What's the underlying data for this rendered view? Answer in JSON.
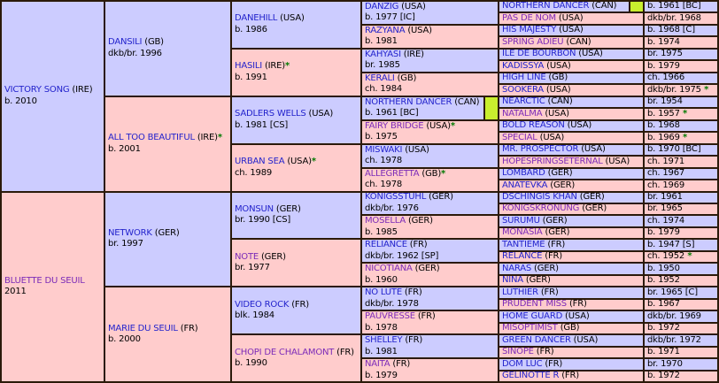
{
  "palette": {
    "sire_bg": "#ccccff",
    "dam_bg": "#ffcccc",
    "border": "#2b1a0a",
    "link": "#2323cc",
    "visited": "#7c2bb8",
    "star": "#007a00",
    "marker": "#c9ee2e",
    "text": "#000000"
  },
  "pedigree": {
    "generations": [
      {
        "column": 1,
        "span": 16,
        "cells": [
          {
            "name": "VICTORY SONG",
            "country": " (IRE)",
            "details": "b. 2010",
            "sex": "sire"
          },
          {
            "name": "BLUETTE DU SEUIL",
            "country": "",
            "details": "2011",
            "sex": "dam",
            "visited": true
          }
        ]
      },
      {
        "column": 2,
        "span": 8,
        "cells": [
          {
            "name": "DANSILI",
            "country": " (GB)",
            "details": "dkb/br. 1996",
            "sex": "sire"
          },
          {
            "name": "ALL TOO BEAUTIFUL",
            "country": " (IRE)",
            "name_star": true,
            "details": "b. 2001",
            "sex": "dam"
          },
          {
            "name": "NETWORK",
            "country": " (GER)",
            "details": "br. 1997",
            "sex": "sire"
          },
          {
            "name": "MARIE DU SEUIL",
            "country": " (FR)",
            "details": "b. 2000",
            "sex": "dam"
          }
        ]
      },
      {
        "column": 3,
        "span": 4,
        "cells": [
          {
            "name": "DANEHILL",
            "country": " (USA)",
            "details": "b. 1986",
            "sex": "sire"
          },
          {
            "name": "HASILI",
            "country": " (IRE)",
            "name_star": true,
            "details": "b. 1991",
            "sex": "dam"
          },
          {
            "name": "SADLERS WELLS",
            "country": " (USA)",
            "details": "b. 1981 [CS]",
            "sex": "sire"
          },
          {
            "name": "URBAN SEA",
            "country": " (USA)",
            "name_star": true,
            "details": "ch. 1989",
            "sex": "dam"
          },
          {
            "name": "MONSUN",
            "country": " (GER)",
            "details": "br. 1990 [CS]",
            "sex": "sire"
          },
          {
            "name": "NOTE",
            "country": " (GER)",
            "details": "br. 1977",
            "sex": "dam",
            "visited": true
          },
          {
            "name": "VIDEO ROCK",
            "country": " (FR)",
            "details": "blk. 1984",
            "sex": "sire"
          },
          {
            "name": "CHOPI DE CHALAMONT",
            "country": " (FR)",
            "details": "b. 1990",
            "sex": "dam",
            "visited": true
          }
        ]
      },
      {
        "column": 4,
        "span": 2,
        "cells": [
          {
            "name": "DANZIG",
            "country": " (USA)",
            "details": "b. 1977 [IC]",
            "sex": "sire"
          },
          {
            "name": "RAZYANA",
            "country": " (USA)",
            "details": "b. 1981",
            "sex": "dam"
          },
          {
            "name": "KAHYASI",
            "country": " (IRE)",
            "details": "br. 1985",
            "sex": "sire"
          },
          {
            "name": "KERALI",
            "country": " (GB)",
            "details": "ch. 1984",
            "sex": "dam"
          },
          {
            "name": "NORTHERN DANCER",
            "country": " (CAN)",
            "details": "b. 1961 [BC]",
            "sex": "sire",
            "marker": true
          },
          {
            "name": "FAIRY BRIDGE",
            "country": " (USA)",
            "name_star": true,
            "details": "b. 1975",
            "sex": "dam",
            "visited": true
          },
          {
            "name": "MISWAKI",
            "country": " (USA)",
            "details": "ch. 1978",
            "sex": "sire"
          },
          {
            "name": "ALLEGRETTA",
            "country": " (GB)",
            "name_star": true,
            "details": "ch. 1978",
            "sex": "dam",
            "visited": true
          },
          {
            "name": "KONIGSSTUHL",
            "country": " (GER)",
            "details": "dkb/br. 1976",
            "sex": "sire"
          },
          {
            "name": "MOSELLA",
            "country": " (GER)",
            "details": "b. 1985",
            "sex": "dam",
            "visited": true
          },
          {
            "name": "RELIANCE",
            "country": " (FR)",
            "details": "dkb/br. 1962 [SP]",
            "sex": "sire"
          },
          {
            "name": "NICOTIANA",
            "country": " (GER)",
            "details": "b. 1960",
            "sex": "dam",
            "visited": true
          },
          {
            "name": "NO LUTE",
            "country": " (FR)",
            "details": "dkb/br. 1978",
            "sex": "sire"
          },
          {
            "name": "PAUVRESSE",
            "country": " (FR)",
            "details": "b. 1978",
            "sex": "dam",
            "visited": true
          },
          {
            "name": "SHELLEY",
            "country": " (FR)",
            "details": "b. 1981",
            "sex": "sire"
          },
          {
            "name": "NAITA",
            "country": " (FR)",
            "details": "b. 1979",
            "sex": "dam",
            "visited": true
          }
        ]
      },
      {
        "column": 5,
        "span": 1,
        "cells": [
          {
            "name": "NORTHERN DANCER",
            "country": " (CAN)",
            "details": "b. 1961 [BC]",
            "sex": "sire",
            "marker": true
          },
          {
            "name": "PAS DE NOM",
            "country": " (USA)",
            "details": "dkb/br. 1968",
            "sex": "dam",
            "visited": true
          },
          {
            "name": "HIS MAJESTY",
            "country": " (USA)",
            "details": "b. 1968 [C]",
            "sex": "sire"
          },
          {
            "name": "SPRING ADIEU",
            "country": " (CAN)",
            "details": "b. 1974",
            "sex": "dam",
            "visited": true
          },
          {
            "name": "ILE DE BOURBON",
            "country": " (USA)",
            "details": "br. 1975",
            "sex": "sire"
          },
          {
            "name": "KADISSYA",
            "country": " (USA)",
            "details": "b. 1979",
            "sex": "dam"
          },
          {
            "name": "HIGH LINE",
            "country": " (GB)",
            "details": "ch. 1966",
            "sex": "sire"
          },
          {
            "name": "SOOKERA",
            "country": " (USA)",
            "details": "dkb/br. 1975",
            "details_star": true,
            "sex": "dam"
          },
          {
            "name": "NEARCTIC",
            "country": " (CAN)",
            "details": "br. 1954",
            "sex": "sire"
          },
          {
            "name": "NATALMA",
            "country": " (USA)",
            "details": "b. 1957",
            "details_star": true,
            "sex": "dam",
            "visited": true
          },
          {
            "name": "BOLD REASON",
            "country": " (USA)",
            "details": "b. 1968",
            "sex": "sire"
          },
          {
            "name": "SPECIAL",
            "country": " (USA)",
            "details": "b. 1969",
            "details_star": true,
            "sex": "dam",
            "visited": true
          },
          {
            "name": "MR. PROSPECTOR",
            "country": " (USA)",
            "details": "b. 1970 [BC]",
            "sex": "sire"
          },
          {
            "name": "HOPESPRINGSETERNAL",
            "country": " (USA)",
            "details": "ch. 1971",
            "sex": "dam",
            "visited": true
          },
          {
            "name": "LOMBARD",
            "country": " (GER)",
            "details": "ch. 1967",
            "sex": "sire"
          },
          {
            "name": "ANATEVKA",
            "country": " (GER)",
            "details": "ch. 1969",
            "sex": "dam"
          },
          {
            "name": "DSCHINGIS KHAN",
            "country": " (GER)",
            "details": "br. 1961",
            "sex": "sire"
          },
          {
            "name": "KONIGSKRONUNG",
            "country": " (GER)",
            "details": "br. 1965",
            "sex": "dam",
            "visited": true
          },
          {
            "name": "SURUMU",
            "country": " (GER)",
            "details": "ch. 1974",
            "sex": "sire"
          },
          {
            "name": "MONASIA",
            "country": " (GER)",
            "details": "b. 1979",
            "sex": "dam",
            "visited": true
          },
          {
            "name": "TANTIEME",
            "country": " (FR)",
            "details": "b. 1947 [S]",
            "sex": "sire"
          },
          {
            "name": "RELANCE",
            "country": " (FR)",
            "details": "ch. 1952",
            "details_star": true,
            "sex": "dam"
          },
          {
            "name": "NARAS",
            "country": " (GER)",
            "details": "b. 1950",
            "sex": "sire"
          },
          {
            "name": "NINA",
            "country": " (GER)",
            "details": "b. 1952",
            "sex": "dam"
          },
          {
            "name": "LUTHIER",
            "country": " (FR)",
            "details": "br. 1965 [C]",
            "sex": "sire"
          },
          {
            "name": "PRUDENT MISS",
            "country": " (FR)",
            "details": "b. 1967",
            "sex": "dam",
            "visited": true
          },
          {
            "name": "HOME GUARD",
            "country": " (USA)",
            "details": "dkb/br. 1969",
            "sex": "sire"
          },
          {
            "name": "MISOPTIMIST",
            "country": " (GB)",
            "details": "b. 1972",
            "sex": "dam",
            "visited": true
          },
          {
            "name": "GREEN DANCER",
            "country": " (USA)",
            "details": "dkb/br. 1972",
            "sex": "sire"
          },
          {
            "name": "SINOPE",
            "country": " (FR)",
            "details": "b. 1971",
            "sex": "dam",
            "visited": true
          },
          {
            "name": "DOM LUC",
            "country": " (FR)",
            "details": "br. 1970",
            "sex": "sire"
          },
          {
            "name": "GELINOTTE R",
            "country": " (FR)",
            "details": "b. 1972",
            "sex": "dam"
          }
        ]
      }
    ]
  }
}
